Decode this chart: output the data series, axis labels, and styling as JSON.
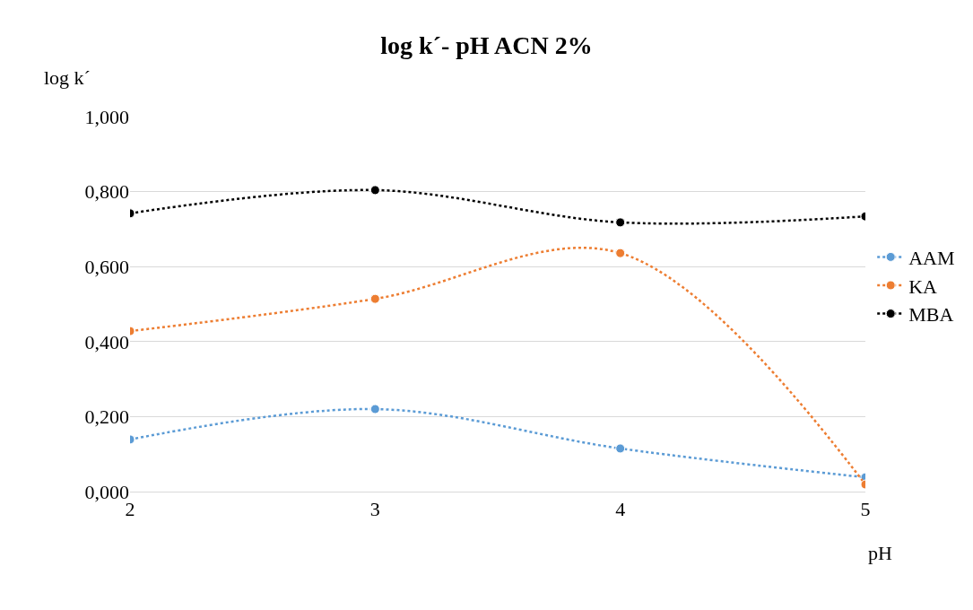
{
  "chart_data": {
    "type": "line",
    "title": "log k´- pH ACN 2%",
    "xlabel": "pH",
    "ylabel": "log k´",
    "x": [
      2,
      3,
      4,
      5
    ],
    "series": [
      {
        "name": "AAM",
        "color": "#5b9bd5",
        "values": [
          0.139,
          0.22,
          0.115,
          0.038
        ]
      },
      {
        "name": "KA",
        "color": "#ed7d31",
        "values": [
          0.428,
          0.514,
          0.636,
          0.019
        ]
      },
      {
        "name": "MBA",
        "color": "#000000",
        "values": [
          0.742,
          0.804,
          0.718,
          0.734
        ]
      }
    ],
    "xlim": [
      2,
      5
    ],
    "xticks": [
      2,
      3,
      4,
      5
    ],
    "ylim": [
      0,
      1
    ],
    "yticks": [
      {
        "value": 0,
        "label": "0,000"
      },
      {
        "value": 0.2,
        "label": "0,200"
      },
      {
        "value": 0.4,
        "label": "0,400"
      },
      {
        "value": 0.6,
        "label": "0,600"
      },
      {
        "value": 0.8,
        "label": "0,800"
      },
      {
        "value": 1,
        "label": "1,000"
      }
    ],
    "grid": "y",
    "legend": "right",
    "marker": "circle",
    "line_style": "dotted"
  }
}
